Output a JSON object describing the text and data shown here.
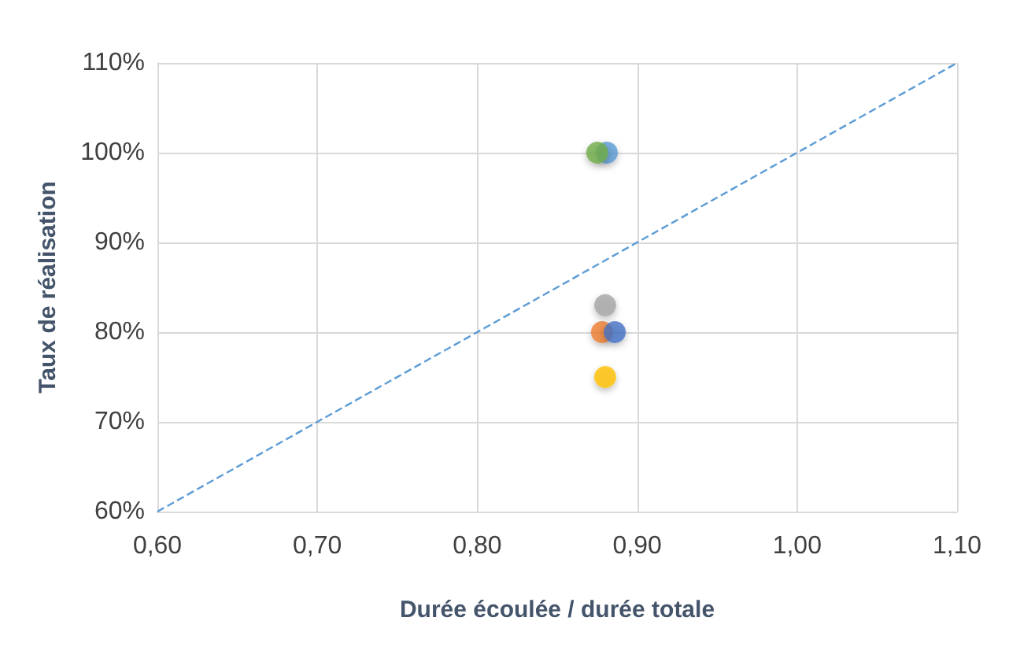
{
  "chart_data": {
    "type": "scatter",
    "xlabel": "Durée écoulée / durée totale",
    "ylabel": "Taux de réalisation",
    "series": [
      {
        "color": "#5b9bd5",
        "x": [
          0.881
        ],
        "values": [
          100
        ]
      },
      {
        "color": "#ed7d31",
        "x": [
          0.878
        ],
        "values": [
          80
        ]
      },
      {
        "color": "#a5a5a5",
        "x": [
          0.88
        ],
        "values": [
          83
        ]
      },
      {
        "color": "#ffc000",
        "x": [
          0.88
        ],
        "values": [
          75
        ]
      },
      {
        "color": "#4472c4",
        "x": [
          0.886
        ],
        "values": [
          80
        ]
      },
      {
        "color": "#70ad47",
        "x": [
          0.875
        ],
        "values": [
          100
        ]
      },
      {
        "type": "line",
        "color": "#5b9bd5",
        "line_style": "dashed",
        "marker": "none",
        "x": [
          0.6,
          1.1
        ],
        "values": [
          60,
          110
        ]
      }
    ],
    "xlim": [
      0.6,
      1.1
    ],
    "xticks": [
      {
        "value": 0.6,
        "label": "0,60"
      },
      {
        "value": 0.7,
        "label": "0,70"
      },
      {
        "value": 0.8,
        "label": "0,80"
      },
      {
        "value": 0.9,
        "label": "0,90"
      },
      {
        "value": 1.0,
        "label": "1,00"
      },
      {
        "value": 1.1,
        "label": "1,10"
      }
    ],
    "ylim": [
      60,
      110
    ],
    "yticks": [
      {
        "value": 60,
        "label": "60%"
      },
      {
        "value": 70,
        "label": "70%"
      },
      {
        "value": 80,
        "label": "80%"
      },
      {
        "value": 90,
        "label": "90%"
      },
      {
        "value": 100,
        "label": "100%"
      },
      {
        "value": 110,
        "label": "110%"
      }
    ],
    "grid": true,
    "marker": "circle"
  }
}
